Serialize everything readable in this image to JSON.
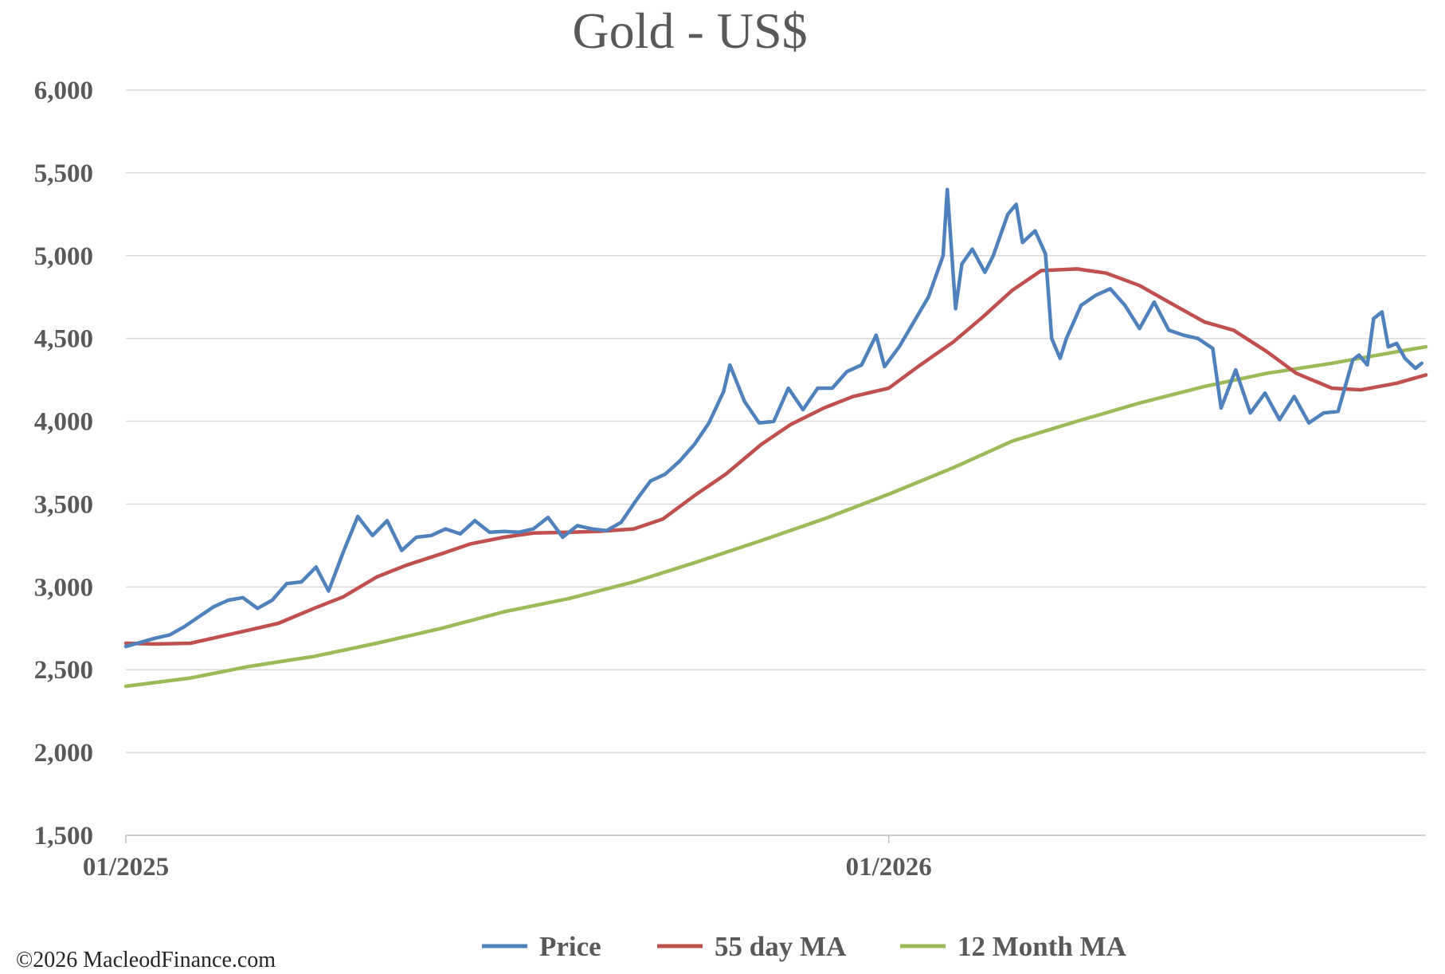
{
  "chart_data": {
    "type": "line",
    "title": "Gold - US$",
    "xlabel": "",
    "ylabel": "",
    "ylim": [
      1500,
      6000
    ],
    "yticks": [
      1500,
      2000,
      2500,
      3000,
      3500,
      4000,
      4500,
      5000,
      5500,
      6000
    ],
    "ytick_labels": [
      "1,500",
      "2,000",
      "2,500",
      "3,000",
      "3,500",
      "4,000",
      "4,500",
      "5,000",
      "5,500",
      "6,000"
    ],
    "xlim": [
      "2025-01-01",
      "2026-09-15"
    ],
    "xticks": [
      "2025-01-01",
      "2026-01-01"
    ],
    "xtick_labels": [
      "01/2025",
      "01/2026"
    ],
    "grid": true,
    "legend_position": "bottom",
    "series": [
      {
        "name": "Price",
        "color": "#4F81BD",
        "points": [
          [
            "2025-01-01",
            2640
          ],
          [
            "2025-01-08",
            2665
          ],
          [
            "2025-01-15",
            2690
          ],
          [
            "2025-01-22",
            2710
          ],
          [
            "2025-01-29",
            2760
          ],
          [
            "2025-02-05",
            2820
          ],
          [
            "2025-02-12",
            2880
          ],
          [
            "2025-02-19",
            2920
          ],
          [
            "2025-02-26",
            2935
          ],
          [
            "2025-03-05",
            2870
          ],
          [
            "2025-03-12",
            2920
          ],
          [
            "2025-03-19",
            3020
          ],
          [
            "2025-03-26",
            3030
          ],
          [
            "2025-04-02",
            3120
          ],
          [
            "2025-04-08",
            2975
          ],
          [
            "2025-04-15",
            3210
          ],
          [
            "2025-04-22",
            3425
          ],
          [
            "2025-04-29",
            3310
          ],
          [
            "2025-05-06",
            3400
          ],
          [
            "2025-05-13",
            3220
          ],
          [
            "2025-05-20",
            3300
          ],
          [
            "2025-05-27",
            3310
          ],
          [
            "2025-06-03",
            3350
          ],
          [
            "2025-06-10",
            3320
          ],
          [
            "2025-06-17",
            3400
          ],
          [
            "2025-06-24",
            3330
          ],
          [
            "2025-07-01",
            3335
          ],
          [
            "2025-07-08",
            3330
          ],
          [
            "2025-07-15",
            3350
          ],
          [
            "2025-07-22",
            3420
          ],
          [
            "2025-07-29",
            3300
          ],
          [
            "2025-08-05",
            3370
          ],
          [
            "2025-08-12",
            3350
          ],
          [
            "2025-08-19",
            3340
          ],
          [
            "2025-08-26",
            3390
          ],
          [
            "2025-09-02",
            3520
          ],
          [
            "2025-09-09",
            3640
          ],
          [
            "2025-09-16",
            3680
          ],
          [
            "2025-09-23",
            3760
          ],
          [
            "2025-09-30",
            3860
          ],
          [
            "2025-10-07",
            3990
          ],
          [
            "2025-10-14",
            4180
          ],
          [
            "2025-10-17",
            4340
          ],
          [
            "2025-10-24",
            4120
          ],
          [
            "2025-10-31",
            3990
          ],
          [
            "2025-11-07",
            4000
          ],
          [
            "2025-11-14",
            4200
          ],
          [
            "2025-11-21",
            4070
          ],
          [
            "2025-11-28",
            4200
          ],
          [
            "2025-12-05",
            4200
          ],
          [
            "2025-12-12",
            4300
          ],
          [
            "2025-12-19",
            4340
          ],
          [
            "2025-12-26",
            4520
          ],
          [
            "2025-12-30",
            4330
          ],
          [
            "2026-01-06",
            4450
          ],
          [
            "2026-01-13",
            4600
          ],
          [
            "2026-01-20",
            4750
          ],
          [
            "2026-01-27",
            5000
          ],
          [
            "2026-01-29",
            5400
          ],
          [
            "2026-02-02",
            4680
          ],
          [
            "2026-02-05",
            4950
          ],
          [
            "2026-02-10",
            5040
          ],
          [
            "2026-02-16",
            4900
          ],
          [
            "2026-02-20",
            5000
          ],
          [
            "2026-02-27",
            5250
          ],
          [
            "2026-03-03",
            5310
          ],
          [
            "2026-03-06",
            5080
          ],
          [
            "2026-03-12",
            5150
          ],
          [
            "2026-03-17",
            5010
          ],
          [
            "2026-03-20",
            4500
          ],
          [
            "2026-03-24",
            4380
          ],
          [
            "2026-03-27",
            4500
          ],
          [
            "2026-04-03",
            4700
          ],
          [
            "2026-04-10",
            4760
          ],
          [
            "2026-04-17",
            4800
          ],
          [
            "2026-04-24",
            4700
          ],
          [
            "2026-05-01",
            4560
          ],
          [
            "2026-05-08",
            4720
          ],
          [
            "2026-05-15",
            4550
          ],
          [
            "2026-05-22",
            4520
          ],
          [
            "2026-05-29",
            4500
          ],
          [
            "2026-06-05",
            4440
          ],
          [
            "2026-06-09",
            4080
          ],
          [
            "2026-06-16",
            4310
          ],
          [
            "2026-06-23",
            4050
          ],
          [
            "2026-06-30",
            4170
          ],
          [
            "2026-07-07",
            4010
          ],
          [
            "2026-07-14",
            4150
          ],
          [
            "2026-07-21",
            3990
          ],
          [
            "2026-07-28",
            4050
          ],
          [
            "2026-08-04",
            4060
          ],
          [
            "2026-08-11",
            4370
          ],
          [
            "2026-08-14",
            4400
          ],
          [
            "2026-08-18",
            4340
          ],
          [
            "2026-08-21",
            4620
          ],
          [
            "2026-08-25",
            4660
          ],
          [
            "2026-08-28",
            4450
          ],
          [
            "2026-09-01",
            4470
          ],
          [
            "2026-09-05",
            4380
          ],
          [
            "2026-09-10",
            4320
          ],
          [
            "2026-09-13",
            4350
          ]
        ]
      },
      {
        "name": "55 day MA",
        "color": "#C0504D",
        "points": [
          [
            "2025-01-01",
            2660
          ],
          [
            "2025-01-15",
            2655
          ],
          [
            "2025-02-01",
            2660
          ],
          [
            "2025-02-15",
            2700
          ],
          [
            "2025-03-01",
            2740
          ],
          [
            "2025-03-15",
            2780
          ],
          [
            "2025-04-01",
            2870
          ],
          [
            "2025-04-15",
            2940
          ],
          [
            "2025-05-01",
            3060
          ],
          [
            "2025-05-15",
            3130
          ],
          [
            "2025-06-01",
            3200
          ],
          [
            "2025-06-15",
            3260
          ],
          [
            "2025-07-01",
            3300
          ],
          [
            "2025-07-15",
            3325
          ],
          [
            "2025-08-01",
            3330
          ],
          [
            "2025-08-15",
            3335
          ],
          [
            "2025-09-01",
            3350
          ],
          [
            "2025-09-15",
            3410
          ],
          [
            "2025-10-01",
            3560
          ],
          [
            "2025-10-15",
            3680
          ],
          [
            "2025-11-01",
            3860
          ],
          [
            "2025-11-15",
            3980
          ],
          [
            "2025-12-01",
            4080
          ],
          [
            "2025-12-15",
            4150
          ],
          [
            "2026-01-01",
            4200
          ],
          [
            "2026-01-15",
            4330
          ],
          [
            "2026-02-01",
            4480
          ],
          [
            "2026-02-15",
            4630
          ],
          [
            "2026-03-01",
            4790
          ],
          [
            "2026-03-15",
            4910
          ],
          [
            "2026-04-01",
            4920
          ],
          [
            "2026-04-15",
            4895
          ],
          [
            "2026-05-01",
            4820
          ],
          [
            "2026-05-15",
            4720
          ],
          [
            "2026-06-01",
            4600
          ],
          [
            "2026-06-15",
            4550
          ],
          [
            "2026-07-01",
            4420
          ],
          [
            "2026-07-15",
            4290
          ],
          [
            "2026-08-01",
            4200
          ],
          [
            "2026-08-15",
            4190
          ],
          [
            "2026-09-01",
            4230
          ],
          [
            "2026-09-15",
            4280
          ]
        ]
      },
      {
        "name": "12 Month MA",
        "color": "#9BBB59",
        "points": [
          [
            "2025-01-01",
            2400
          ],
          [
            "2025-02-01",
            2450
          ],
          [
            "2025-03-01",
            2520
          ],
          [
            "2025-04-01",
            2580
          ],
          [
            "2025-05-01",
            2660
          ],
          [
            "2025-06-01",
            2750
          ],
          [
            "2025-07-01",
            2850
          ],
          [
            "2025-08-01",
            2930
          ],
          [
            "2025-09-01",
            3030
          ],
          [
            "2025-10-01",
            3150
          ],
          [
            "2025-11-01",
            3280
          ],
          [
            "2025-12-01",
            3410
          ],
          [
            "2026-01-01",
            3560
          ],
          [
            "2026-02-01",
            3720
          ],
          [
            "2026-03-01",
            3880
          ],
          [
            "2026-04-01",
            4000
          ],
          [
            "2026-05-01",
            4110
          ],
          [
            "2026-06-01",
            4210
          ],
          [
            "2026-07-01",
            4290
          ],
          [
            "2026-08-01",
            4350
          ],
          [
            "2026-09-01",
            4420
          ],
          [
            "2026-09-15",
            4450
          ]
        ]
      }
    ]
  },
  "footer": {
    "copyright": "©2026 MacleodFinance.com"
  }
}
